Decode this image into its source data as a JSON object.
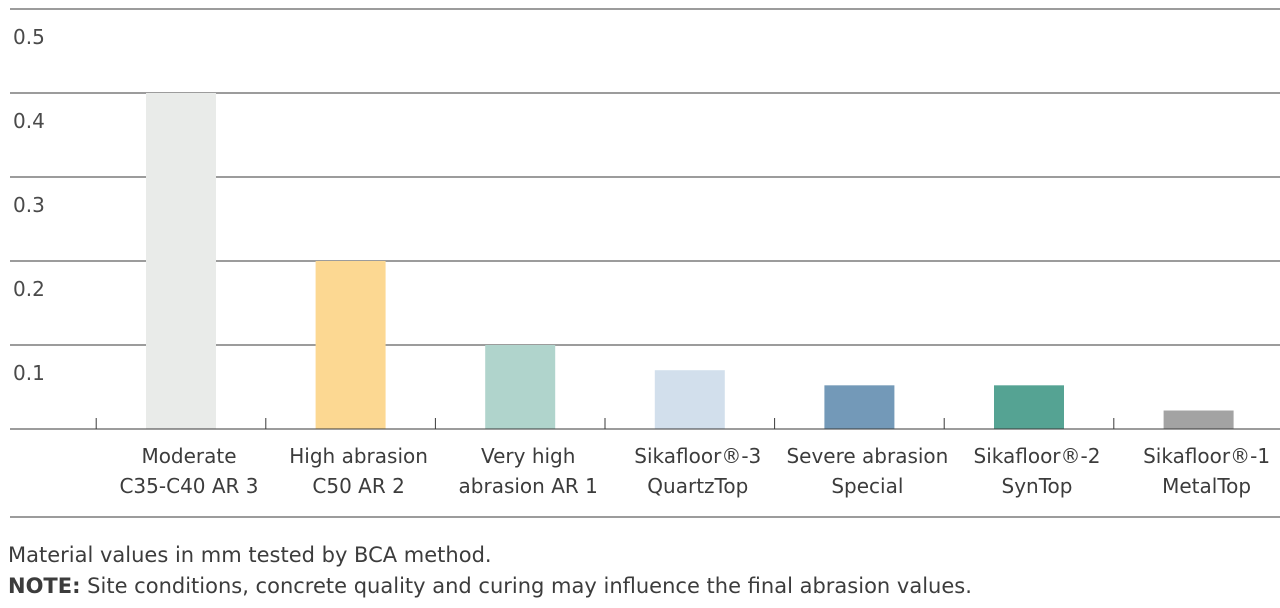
{
  "chart_data": {
    "type": "bar",
    "categories": [
      [
        "Moderate",
        "C35-C40 AR 3"
      ],
      [
        "High abrasion",
        "C50 AR 2"
      ],
      [
        "Very high",
        "abrasion AR 1"
      ],
      [
        "Sikafloor®-3",
        "QuartzTop"
      ],
      [
        "Severe abrasion",
        "Special"
      ],
      [
        "Sikafloor®-2",
        "SynTop"
      ],
      [
        "Sikafloor®-1",
        "MetalTop"
      ]
    ],
    "values": [
      0.4,
      0.2,
      0.1,
      0.07,
      0.052,
      0.052,
      0.022
    ],
    "colors": [
      "#e9ebe9",
      "#fcd892",
      "#b0d4cc",
      "#d2dfec",
      "#7399b8",
      "#55a393",
      "#a3a3a3"
    ],
    "yticks": [
      "0.1",
      "0.2",
      "0.3",
      "0.4",
      "0.5"
    ],
    "ylim": [
      0,
      0.5
    ],
    "grid": true
  },
  "footnote": {
    "line1": "Material values in mm tested by BCA method.",
    "note_label": "NOTE:",
    "note_text": " Site conditions, concrete quality and curing may influence the final abrasion values."
  }
}
